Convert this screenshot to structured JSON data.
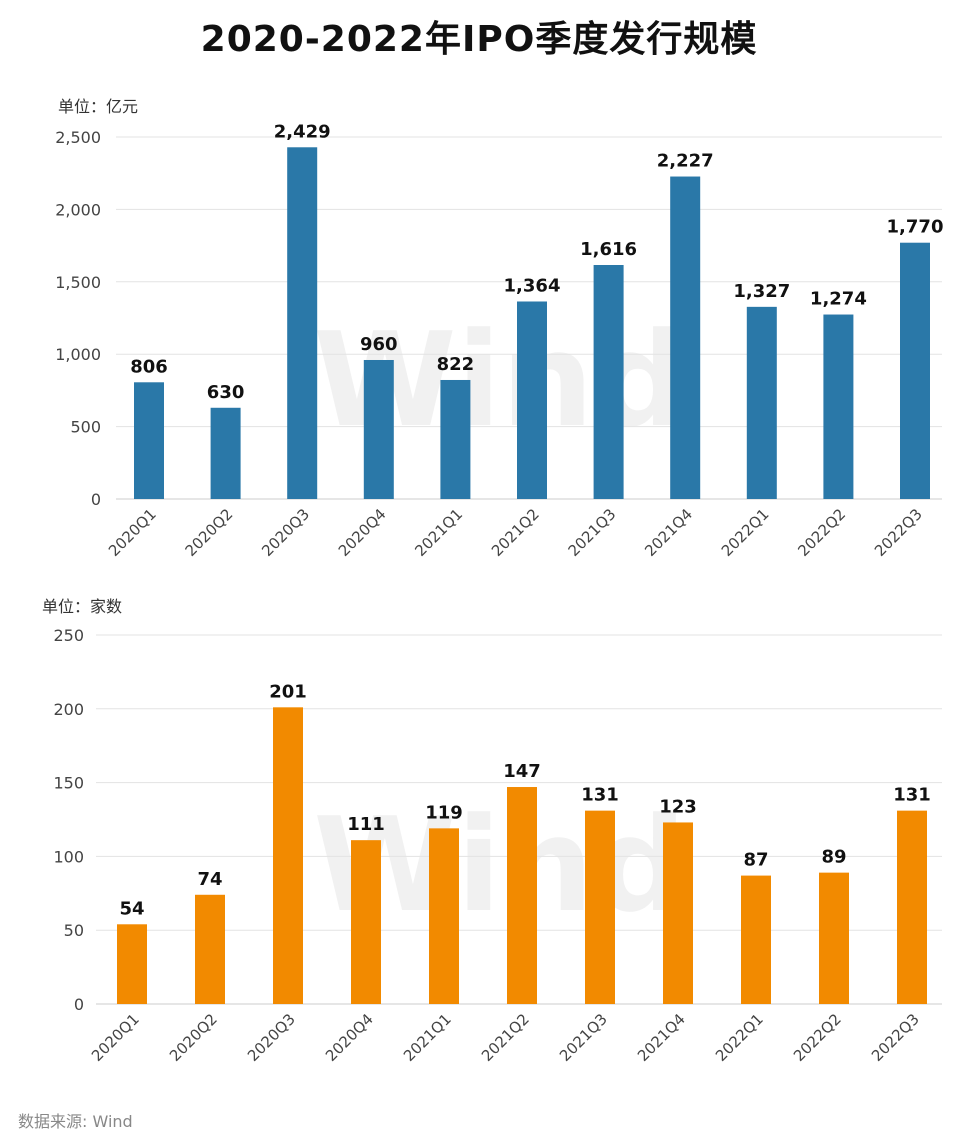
{
  "title": "2020-2022年IPO季度发行规模",
  "source": "数据来源: Wind",
  "watermark": "Wind",
  "chart_data": [
    {
      "type": "bar",
      "unit_label": "单位：亿元",
      "categories": [
        "2020Q1",
        "2020Q2",
        "2020Q3",
        "2020Q4",
        "2021Q1",
        "2021Q2",
        "2021Q3",
        "2021Q4",
        "2022Q1",
        "2022Q2",
        "2022Q3"
      ],
      "values": [
        806,
        630,
        2429,
        960,
        822,
        1364,
        1616,
        2227,
        1327,
        1274,
        1770
      ],
      "data_labels": [
        "806",
        "630",
        "2,429",
        "960",
        "822",
        "1,364",
        "1,616",
        "2,227",
        "1,327",
        "1,274",
        "1,770"
      ],
      "ylim": [
        0,
        2500
      ],
      "yticks": [
        0,
        500,
        1000,
        1500,
        2000,
        2500
      ],
      "ytick_labels": [
        "0",
        "500",
        "1,000",
        "1,500",
        "2,000",
        "2,500"
      ],
      "color": "#2a78a8",
      "grid": true
    },
    {
      "type": "bar",
      "unit_label": "单位：家数",
      "categories": [
        "2020Q1",
        "2020Q2",
        "2020Q3",
        "2020Q4",
        "2021Q1",
        "2021Q2",
        "2021Q3",
        "2021Q4",
        "2022Q1",
        "2022Q2",
        "2022Q3"
      ],
      "values": [
        54,
        74,
        201,
        111,
        119,
        147,
        131,
        123,
        87,
        89,
        131
      ],
      "data_labels": [
        "54",
        "74",
        "201",
        "111",
        "119",
        "147",
        "131",
        "123",
        "87",
        "89",
        "131"
      ],
      "ylim": [
        0,
        250
      ],
      "yticks": [
        0,
        50,
        100,
        150,
        200,
        250
      ],
      "ytick_labels": [
        "0",
        "50",
        "100",
        "150",
        "200",
        "250"
      ],
      "color": "#f28a00",
      "grid": true
    }
  ]
}
